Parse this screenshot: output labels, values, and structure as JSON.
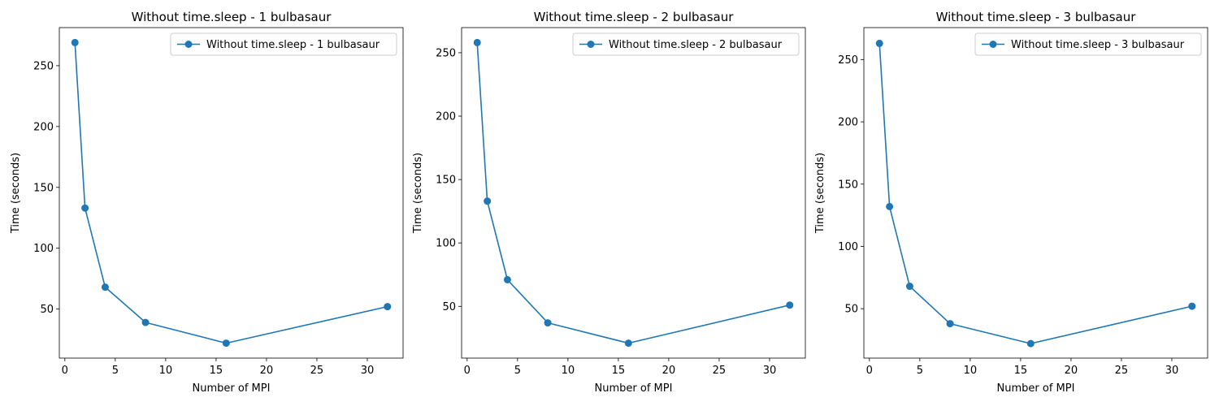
{
  "figure": {
    "background": "#ffffff",
    "series_color": "#1f77b4"
  },
  "chart_data": [
    {
      "type": "line",
      "title": "Without time.sleep - 1 bulbasaur",
      "xlabel": "Number of MPI",
      "ylabel": "Time (seconds)",
      "xlim": [
        -0.55,
        33.55
      ],
      "ylim": [
        9.7,
        281.3
      ],
      "xticks": [
        0,
        5,
        10,
        15,
        20,
        25,
        30
      ],
      "yticks": [
        50,
        100,
        150,
        200,
        250
      ],
      "grid": false,
      "legend": "top-right",
      "series": [
        {
          "name": "Without time.sleep - 1 bulbasaur",
          "marker": "circle",
          "x": [
            1,
            2,
            4,
            8,
            16,
            32
          ],
          "y": [
            269,
            133,
            68,
            39,
            22,
            52
          ]
        }
      ]
    },
    {
      "type": "line",
      "title": "Without time.sleep - 2 bulbasaur",
      "xlabel": "Number of MPI",
      "ylabel": "Time (seconds)",
      "xlim": [
        -0.55,
        33.55
      ],
      "ylim": [
        9.2,
        269.8
      ],
      "xticks": [
        0,
        5,
        10,
        15,
        20,
        25,
        30
      ],
      "yticks": [
        50,
        100,
        150,
        200,
        250
      ],
      "grid": false,
      "legend": "top-right",
      "series": [
        {
          "name": "Without time.sleep - 2 bulbasaur",
          "marker": "circle",
          "x": [
            1,
            2,
            4,
            8,
            16,
            32
          ],
          "y": [
            258,
            133,
            71,
            37,
            21,
            51
          ]
        }
      ]
    },
    {
      "type": "line",
      "title": "Without time.sleep - 3 bulbasaur",
      "xlabel": "Number of MPI",
      "ylabel": "Time (seconds)",
      "xlim": [
        -0.55,
        33.55
      ],
      "ylim": [
        10.35,
        275.65
      ],
      "xticks": [
        0,
        5,
        10,
        15,
        20,
        25,
        30
      ],
      "yticks": [
        50,
        100,
        150,
        200,
        250
      ],
      "grid": false,
      "legend": "top-right",
      "series": [
        {
          "name": "Without time.sleep - 3 bulbasaur",
          "marker": "circle",
          "x": [
            1,
            2,
            4,
            8,
            16,
            32
          ],
          "y": [
            263,
            132,
            68,
            38,
            22,
            52
          ]
        }
      ]
    }
  ]
}
